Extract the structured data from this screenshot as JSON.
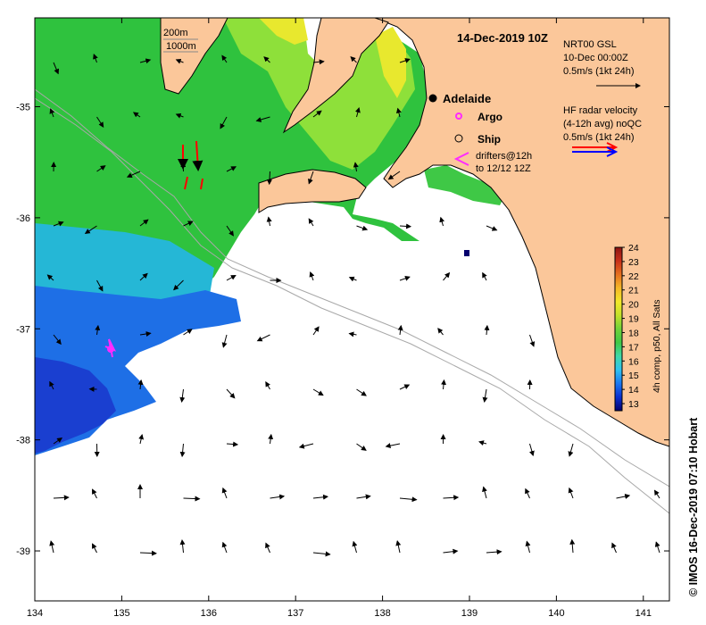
{
  "title": "14-Dec-2019 10Z",
  "credit": "© IMOS 16-Dec-2019 07:10 Hobart",
  "depth_legend": [
    "200m",
    "1000m"
  ],
  "places": {
    "city": "Adelaide",
    "argo_label": "Argo",
    "ship_label": "Ship",
    "drifters_line1": "drifters@12h",
    "drifters_line2": "to 12/12 12Z"
  },
  "legend_gsl": {
    "line1": "NRT00 GSL",
    "line2": "10-Dec 00:00Z",
    "line3": "0.5m/s (1kt 24h)"
  },
  "legend_hf": {
    "line1": "HF radar velocity",
    "line2": "(4-12h avg) noQC",
    "line3": "0.5m/s (1kt 24h)"
  },
  "colorbar": {
    "label": "4h comp, p50, All Sats",
    "ticks": [
      "24",
      "23",
      "22",
      "21",
      "20",
      "19",
      "18",
      "17",
      "16",
      "15",
      "14",
      "13"
    ],
    "min": 12.5,
    "max": 24,
    "stops": [
      "#04006e",
      "#0a2fd0",
      "#1b78f0",
      "#2fc3f0",
      "#3fd9a8",
      "#3fc846",
      "#6fd23a",
      "#c2e02a",
      "#f2e82a",
      "#f4b828",
      "#e6701e",
      "#c8301a",
      "#8c1412"
    ]
  },
  "axes": {
    "x_ticks": [
      "134",
      "135",
      "136",
      "137",
      "138",
      "139",
      "140",
      "141"
    ],
    "y_ticks": [
      "-35",
      "-36",
      "-37",
      "-38",
      "-39"
    ],
    "x_range": [
      134,
      141.3
    ],
    "y_range": [
      -39.45,
      -34.2
    ]
  },
  "colors": {
    "land": "#fbc79a",
    "sst_green": "#2fc23e",
    "sst_light_green": "#8ee03a",
    "sst_yellow": "#e8e82e",
    "sst_cyan": "#25b7d6",
    "sst_blue": "#1e6fe6",
    "sst_dark_blue": "#1a3fd0",
    "argo": "#ff2bff",
    "drifter": "#ff0000",
    "hf_red": "#ff0000",
    "hf_blue": "#0000ff"
  }
}
